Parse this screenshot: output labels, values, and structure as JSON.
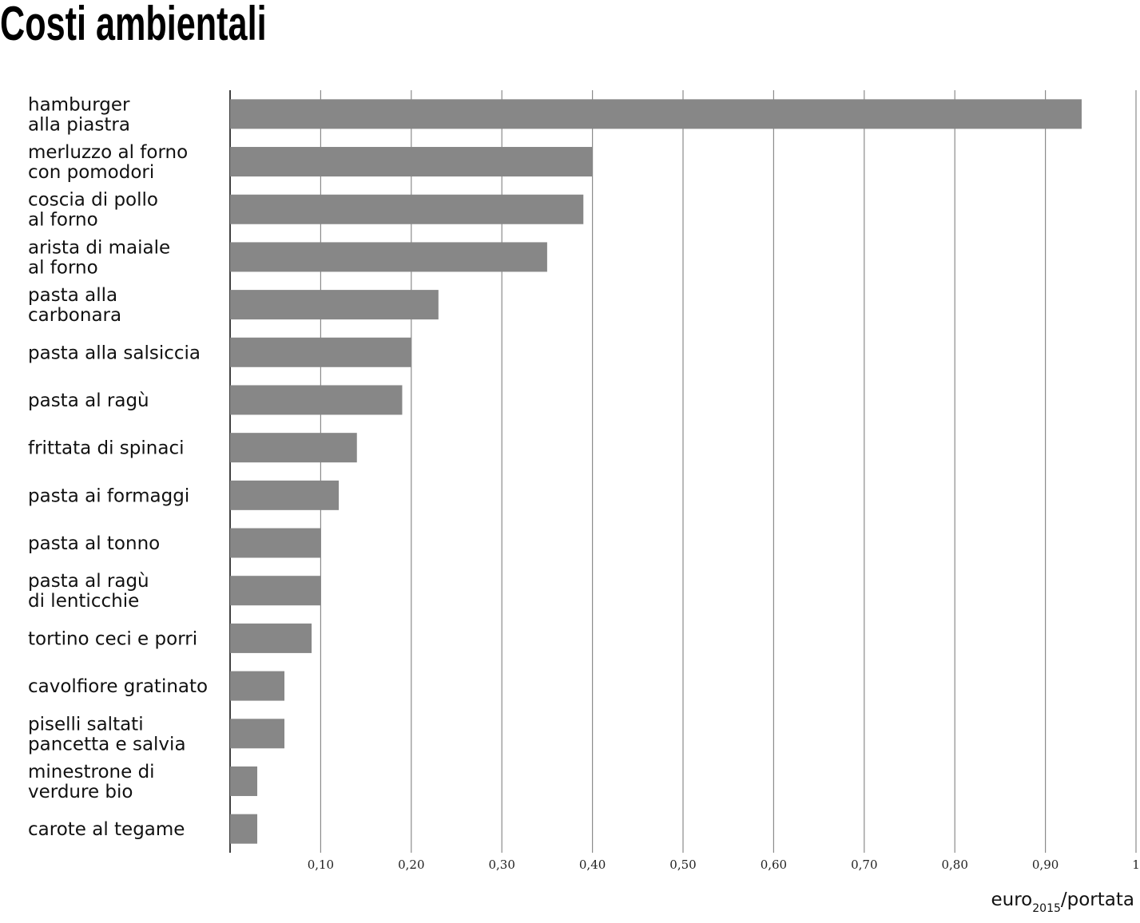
{
  "chart_data": {
    "type": "bar",
    "orientation": "horizontal",
    "title": "Costi ambientali",
    "categories": [
      "hamburger\nalla piastra",
      "merluzzo al forno\ncon pomodori",
      "coscia di pollo\nal forno",
      "arista di maiale\nal forno",
      "pasta alla\ncarbonara",
      "pasta alla salsiccia",
      "pasta al ragù",
      "frittata di spinaci",
      "pasta ai formaggi",
      "pasta al tonno",
      "pasta al ragù\ndi lenticchie",
      "tortino ceci e porri",
      "cavolfiore gratinato",
      "piselli saltati\npancetta e salvia",
      "minestrone di\nverdure bio",
      "carote al tegame"
    ],
    "values": [
      0.94,
      0.4,
      0.39,
      0.35,
      0.23,
      0.2,
      0.19,
      0.14,
      0.12,
      0.1,
      0.1,
      0.09,
      0.06,
      0.06,
      0.03,
      0.03
    ],
    "color": "#878787",
    "xlim": [
      0,
      1
    ],
    "xticks": [
      {
        "value": 0.1,
        "label": "0,10"
      },
      {
        "value": 0.2,
        "label": "0,20"
      },
      {
        "value": 0.3,
        "label": "0,30"
      },
      {
        "value": 0.4,
        "label": "0,40"
      },
      {
        "value": 0.5,
        "label": "0,50"
      },
      {
        "value": 0.6,
        "label": "0,60"
      },
      {
        "value": 0.7,
        "label": "0,70"
      },
      {
        "value": 0.8,
        "label": "0,80"
      },
      {
        "value": 0.9,
        "label": "0,90"
      },
      1
    ],
    "x_label": {
      "main": "euro",
      "sub": "2015",
      "rest": "/portata"
    },
    "grid": true
  }
}
